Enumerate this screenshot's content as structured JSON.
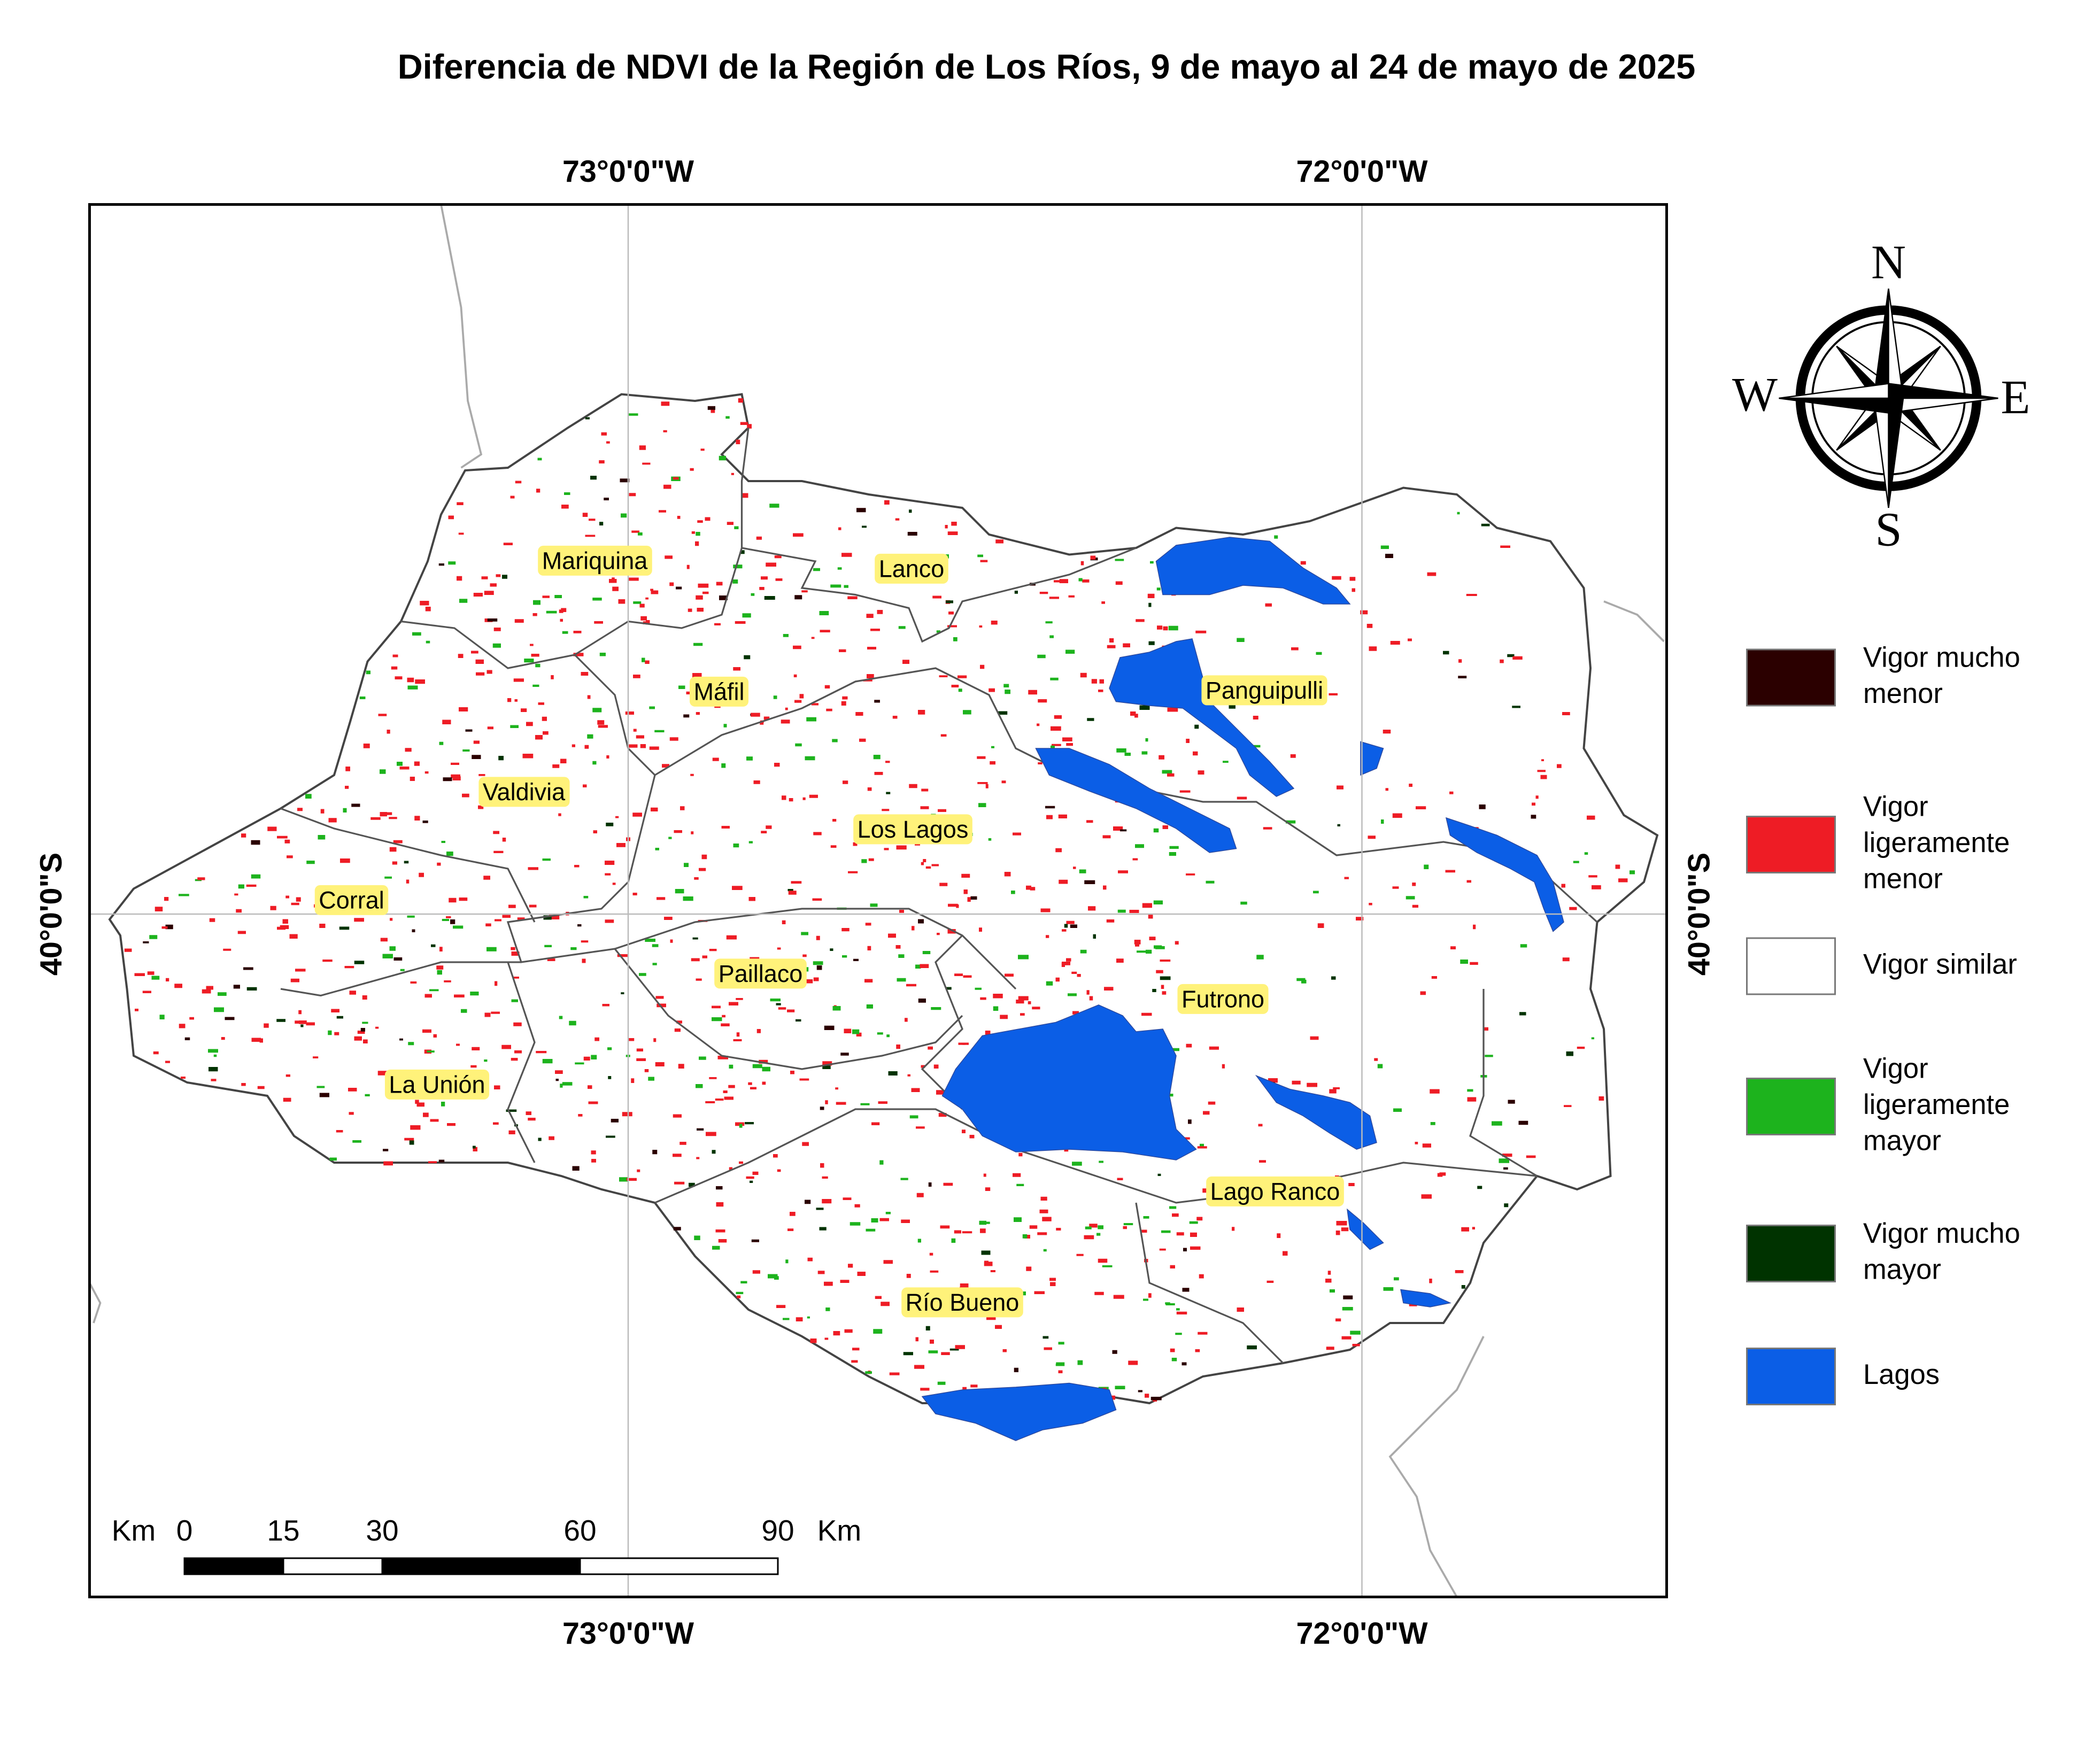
{
  "title": "Diferencia de NDVI de la Región de Los Ríos, 9 de mayo al 24 de mayo de 2025",
  "graticule": {
    "top": [
      "73°0'0\"W",
      "72°0'0\"W"
    ],
    "bottom": [
      "73°0'0\"W",
      "72°0'0\"W"
    ],
    "left": "40°0'0\"S",
    "right": "40°0'0\"S"
  },
  "places": [
    "Mariquina",
    "Lanco",
    "Máfil",
    "Panguipulli",
    "Valdivia",
    "Los Lagos",
    "Corral",
    "Paillaco",
    "Futrono",
    "La Unión",
    "Lago Ranco",
    "Río Bueno"
  ],
  "legend": [
    {
      "label": [
        "Vigor mucho",
        "menor"
      ],
      "color": "#2b0000"
    },
    {
      "label": [
        "Vigor",
        "ligeramente",
        "menor"
      ],
      "color": "#ee1c25"
    },
    {
      "label": [
        "Vigor similar"
      ],
      "color": "#ffffff"
    },
    {
      "label": [
        "Vigor",
        "ligeramente",
        "mayor"
      ],
      "color": "#1db31d"
    },
    {
      "label": [
        "Vigor mucho",
        "mayor"
      ],
      "color": "#003300"
    },
    {
      "label": [
        "Lagos"
      ],
      "color": "#0b5ee6"
    }
  ],
  "scale_bar": {
    "unit_left": "Km",
    "unit_right": "Km",
    "ticks": [
      0,
      15,
      30,
      60,
      90
    ]
  },
  "compass": {
    "n": "N",
    "s": "S",
    "e": "E",
    "w": "W"
  }
}
